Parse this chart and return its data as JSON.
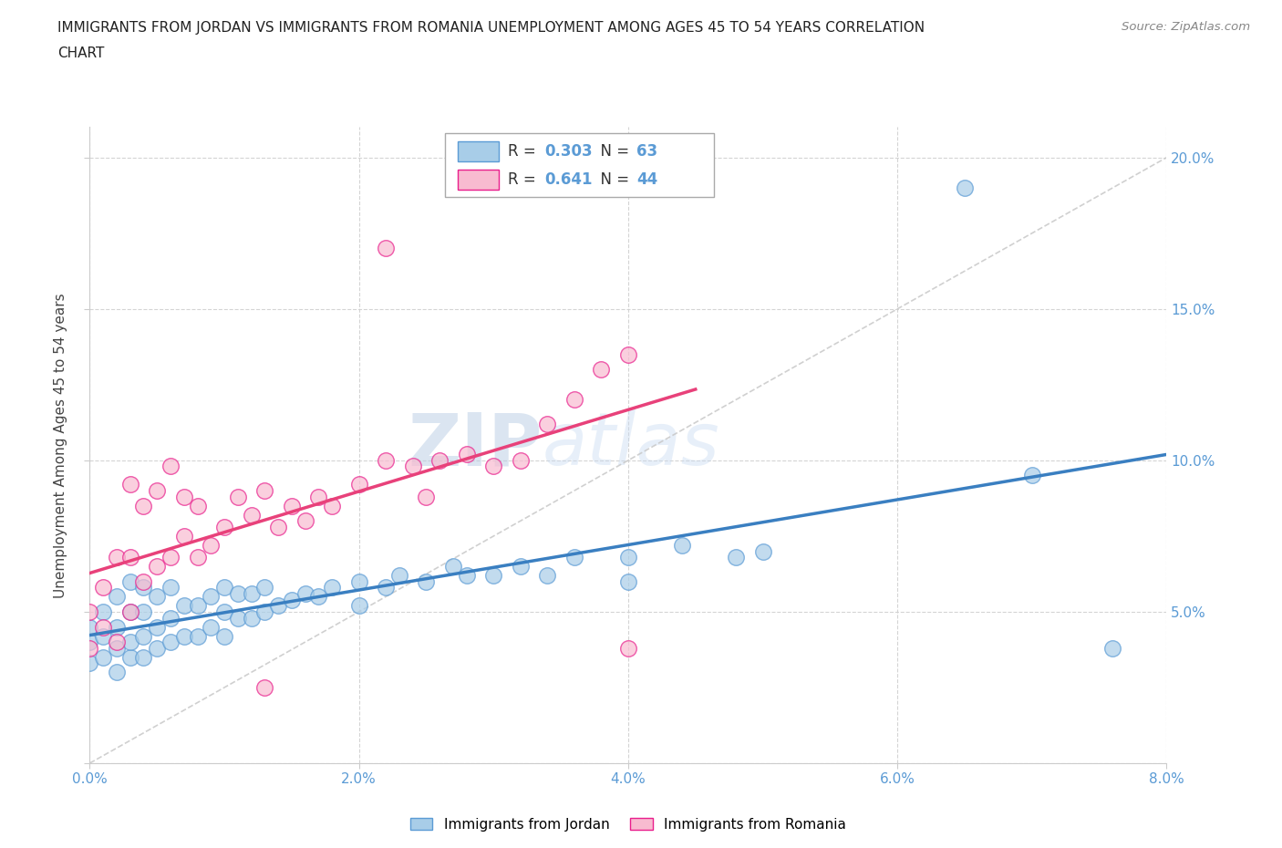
{
  "title_line1": "IMMIGRANTS FROM JORDAN VS IMMIGRANTS FROM ROMANIA UNEMPLOYMENT AMONG AGES 45 TO 54 YEARS CORRELATION",
  "title_line2": "CHART",
  "source_text": "Source: ZipAtlas.com",
  "ylabel": "Unemployment Among Ages 45 to 54 years",
  "xlim": [
    0.0,
    0.08
  ],
  "ylim": [
    0.0,
    0.21
  ],
  "xticks": [
    0.0,
    0.02,
    0.04,
    0.06,
    0.08
  ],
  "yticks": [
    0.0,
    0.05,
    0.1,
    0.15,
    0.2
  ],
  "xticklabels": [
    "0.0%",
    "2.0%",
    "4.0%",
    "6.0%",
    "8.0%"
  ],
  "yticklabels": [
    "",
    "5.0%",
    "10.0%",
    "15.0%",
    "20.0%"
  ],
  "jordan_color": "#a8cde8",
  "jordan_edge_color": "#5b9bd5",
  "romania_color": "#f8bbd0",
  "romania_edge_color": "#e91e8c",
  "jordan_line_color": "#3a7fc1",
  "romania_line_color": "#e8417a",
  "diag_color": "#c8c8c8",
  "tick_color": "#5b9bd5",
  "legend_jordan_label": "Immigrants from Jordan",
  "legend_romania_label": "Immigrants from Romania",
  "r_jordan": "0.303",
  "n_jordan": "63",
  "r_romania": "0.641",
  "n_romania": "44",
  "watermark_zip": "ZIP",
  "watermark_atlas": "atlas",
  "jordan_x": [
    0.0,
    0.0,
    0.0,
    0.001,
    0.001,
    0.001,
    0.002,
    0.002,
    0.002,
    0.002,
    0.003,
    0.003,
    0.003,
    0.003,
    0.004,
    0.004,
    0.004,
    0.004,
    0.005,
    0.005,
    0.005,
    0.006,
    0.006,
    0.006,
    0.007,
    0.007,
    0.008,
    0.008,
    0.009,
    0.009,
    0.01,
    0.01,
    0.01,
    0.011,
    0.011,
    0.012,
    0.012,
    0.013,
    0.013,
    0.014,
    0.015,
    0.016,
    0.017,
    0.018,
    0.02,
    0.02,
    0.022,
    0.023,
    0.025,
    0.027,
    0.028,
    0.03,
    0.032,
    0.034,
    0.036,
    0.04,
    0.04,
    0.044,
    0.048,
    0.05,
    0.065,
    0.07,
    0.076
  ],
  "jordan_y": [
    0.033,
    0.04,
    0.045,
    0.035,
    0.042,
    0.05,
    0.03,
    0.038,
    0.045,
    0.055,
    0.035,
    0.04,
    0.05,
    0.06,
    0.035,
    0.042,
    0.05,
    0.058,
    0.038,
    0.045,
    0.055,
    0.04,
    0.048,
    0.058,
    0.042,
    0.052,
    0.042,
    0.052,
    0.045,
    0.055,
    0.042,
    0.05,
    0.058,
    0.048,
    0.056,
    0.048,
    0.056,
    0.05,
    0.058,
    0.052,
    0.054,
    0.056,
    0.055,
    0.058,
    0.052,
    0.06,
    0.058,
    0.062,
    0.06,
    0.065,
    0.062,
    0.062,
    0.065,
    0.062,
    0.068,
    0.06,
    0.068,
    0.072,
    0.068,
    0.07,
    0.19,
    0.095,
    0.038
  ],
  "romania_x": [
    0.0,
    0.0,
    0.001,
    0.001,
    0.002,
    0.002,
    0.003,
    0.003,
    0.003,
    0.004,
    0.004,
    0.005,
    0.005,
    0.006,
    0.006,
    0.007,
    0.007,
    0.008,
    0.008,
    0.009,
    0.01,
    0.011,
    0.012,
    0.013,
    0.014,
    0.015,
    0.016,
    0.017,
    0.018,
    0.02,
    0.022,
    0.024,
    0.025,
    0.026,
    0.028,
    0.03,
    0.032,
    0.034,
    0.036,
    0.038,
    0.04,
    0.022,
    0.013,
    0.04
  ],
  "romania_y": [
    0.038,
    0.05,
    0.045,
    0.058,
    0.04,
    0.068,
    0.05,
    0.068,
    0.092,
    0.06,
    0.085,
    0.065,
    0.09,
    0.068,
    0.098,
    0.075,
    0.088,
    0.068,
    0.085,
    0.072,
    0.078,
    0.088,
    0.082,
    0.09,
    0.078,
    0.085,
    0.08,
    0.088,
    0.085,
    0.092,
    0.1,
    0.098,
    0.088,
    0.1,
    0.102,
    0.098,
    0.1,
    0.112,
    0.12,
    0.13,
    0.135,
    0.17,
    0.025,
    0.038
  ]
}
